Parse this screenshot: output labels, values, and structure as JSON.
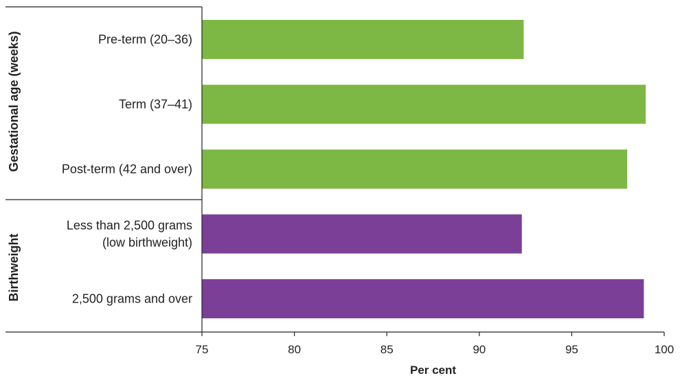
{
  "chart_data": {
    "type": "bar",
    "orientation": "horizontal",
    "groups": [
      {
        "name": "Gestational age (weeks)",
        "color": "#7db844",
        "categories": [
          {
            "lines": [
              "Pre-term (20–36)"
            ],
            "value": 92.4
          },
          {
            "lines": [
              "Term (37–41)"
            ],
            "value": 99.0
          },
          {
            "lines": [
              "Post-term (42 and over)"
            ],
            "value": 98.0
          }
        ]
      },
      {
        "name": "Birthweight",
        "color": "#7b3f98",
        "categories": [
          {
            "lines": [
              "Less than 2,500 grams",
              "(low birthweight)"
            ],
            "value": 92.3
          },
          {
            "lines": [
              "2,500 grams and over"
            ],
            "value": 98.9
          }
        ]
      }
    ],
    "xlabel": "Per cent",
    "xlim": [
      75,
      100
    ],
    "xticks": [
      75,
      80,
      85,
      90,
      95,
      100
    ]
  }
}
